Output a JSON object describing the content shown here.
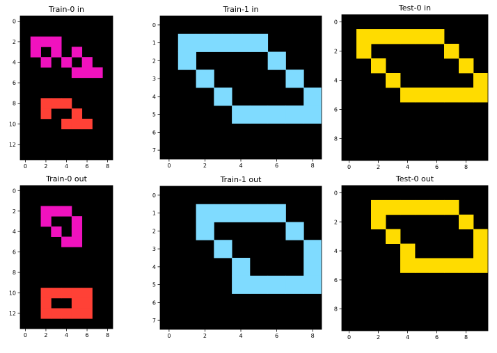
{
  "palette": {
    "0": "#000000",
    "2": "#FF4136",
    "6": "#F012BE",
    "8": "#7FDBFF",
    "4": "#FFDC00"
  },
  "panels": [
    {
      "id": "train-0-in",
      "title": "Train-0 in",
      "rows": 14,
      "cols": 9,
      "xticks": [
        0,
        2,
        4,
        6,
        8
      ],
      "yticks": [
        0,
        2,
        4,
        6,
        8,
        10,
        12
      ],
      "grid": [
        "000000000",
        "000000000",
        "066600000",
        "060606000",
        "006060600",
        "000006660",
        "000000000",
        "000000000",
        "002220000",
        "002002000",
        "000022200",
        "000000000",
        "000000000",
        "000000000"
      ]
    },
    {
      "id": "train-1-in",
      "title": "Train-1 in",
      "rows": 8,
      "cols": 9,
      "xticks": [
        0,
        2,
        4,
        6,
        8
      ],
      "yticks": [
        0,
        1,
        2,
        3,
        4,
        5,
        6,
        7
      ],
      "grid": [
        "000000000",
        "088888000",
        "080000800",
        "008000080",
        "000800008",
        "000088888",
        "000000000",
        "000000000"
      ]
    },
    {
      "id": "test-0-in",
      "title": "Test-0 in",
      "rows": 10,
      "cols": 10,
      "xticks": [
        0,
        2,
        4,
        6,
        8
      ],
      "yticks": [
        0,
        2,
        4,
        6,
        8
      ],
      "grid": [
        "0000000000",
        "0444444000",
        "0400000400",
        "0040000040",
        "0004000004",
        "0000444444",
        "0000000000",
        "0000000000",
        "0000000000",
        "0000000000"
      ]
    },
    {
      "id": "train-0-out",
      "title": "Train-0 out",
      "rows": 14,
      "cols": 9,
      "xticks": [
        0,
        2,
        4,
        6,
        8
      ],
      "yticks": [
        0,
        2,
        4,
        6,
        8,
        10,
        12
      ],
      "grid": [
        "000000000",
        "000000000",
        "006660000",
        "006006000",
        "000606000",
        "000066000",
        "000000000",
        "000000000",
        "000000000",
        "000000000",
        "002222200",
        "002002200",
        "002222200",
        "000000000"
      ]
    },
    {
      "id": "train-1-out",
      "title": "Train-1 out",
      "rows": 8,
      "cols": 9,
      "xticks": [
        0,
        2,
        4,
        6,
        8
      ],
      "yticks": [
        0,
        1,
        2,
        3,
        4,
        5,
        6,
        7
      ],
      "grid": [
        "000000000",
        "008888800",
        "008000080",
        "000800008",
        "000080008",
        "000088888",
        "000000000",
        "000000000"
      ]
    },
    {
      "id": "test-0-out",
      "title": "Test-0 out",
      "rows": 10,
      "cols": 10,
      "xticks": [
        0,
        2,
        4,
        6,
        8
      ],
      "yticks": [
        0,
        2,
        4,
        6,
        8
      ],
      "grid": [
        "0000000000",
        "0044444400",
        "0040000040",
        "0004000004",
        "0000400004",
        "0000444444",
        "0000000000",
        "0000000000",
        "0000000000",
        "0000000000"
      ]
    }
  ]
}
